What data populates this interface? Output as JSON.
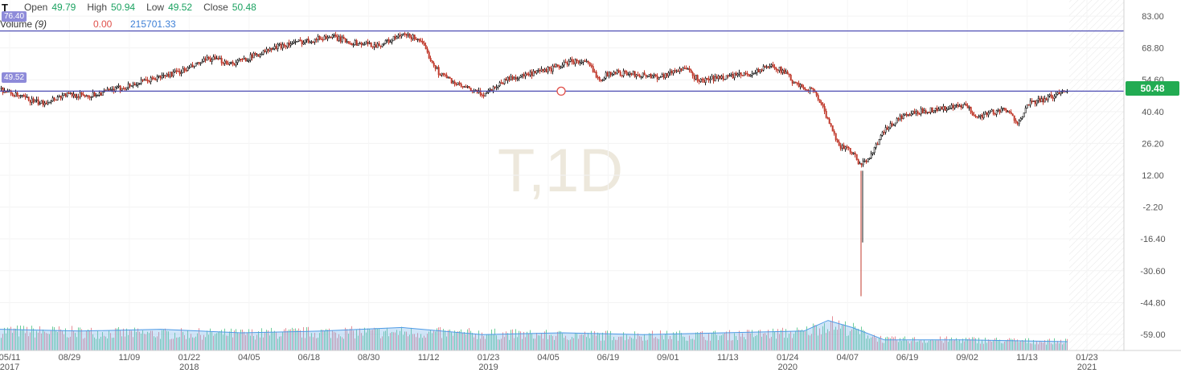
{
  "header": {
    "symbol": "T",
    "open_label": "Open",
    "open_value": "49.79",
    "high_label": "High",
    "high_value": "50.94",
    "low_label": "Low",
    "low_value": "49.52",
    "close_label": "Close",
    "close_value": "50.48"
  },
  "volume": {
    "label": "Volume",
    "period": "(9)",
    "value_a": "0.00",
    "value_b": "215701.33"
  },
  "horizontal_lines": {
    "upper": "76.40",
    "lower": "49.52"
  },
  "last_price": "50.48",
  "watermark": "T,1D",
  "colors": {
    "up": "#1aa260",
    "down": "#e0504a",
    "line": "#4d4db3",
    "tag": "#8e8bd9",
    "last_price": "#22ab52",
    "volume_ma": "#78b4ea"
  },
  "chart_data": {
    "type": "candlestick",
    "title": "",
    "ylim": [
      -66.2,
      90.2
    ],
    "y_ticks": [
      "83.00",
      "68.80",
      "54.60",
      "40.40",
      "26.20",
      "12.00",
      "-2.20",
      "-16.40",
      "-30.60",
      "-44.80",
      "-59.00"
    ],
    "x_ticks": [
      {
        "label": "05/11",
        "sub": "2017"
      },
      {
        "label": "08/29",
        "sub": ""
      },
      {
        "label": "11/09",
        "sub": ""
      },
      {
        "label": "01/22",
        "sub": "2018"
      },
      {
        "label": "04/05",
        "sub": ""
      },
      {
        "label": "06/18",
        "sub": ""
      },
      {
        "label": "08/30",
        "sub": ""
      },
      {
        "label": "11/12",
        "sub": ""
      },
      {
        "label": "01/23",
        "sub": "2019"
      },
      {
        "label": "04/05",
        "sub": ""
      },
      {
        "label": "06/19",
        "sub": ""
      },
      {
        "label": "09/01",
        "sub": ""
      },
      {
        "label": "11/13",
        "sub": ""
      },
      {
        "label": "01/24",
        "sub": "2020"
      },
      {
        "label": "04/07",
        "sub": ""
      },
      {
        "label": "06/19",
        "sub": ""
      },
      {
        "label": "09/02",
        "sub": ""
      },
      {
        "label": "11/13",
        "sub": ""
      },
      {
        "label": "01/23",
        "sub": "2021"
      }
    ],
    "close_path": [
      [
        0,
        50.5
      ],
      [
        20,
        47.5
      ],
      [
        50,
        44
      ],
      [
        80,
        48
      ],
      [
        110,
        47.5
      ],
      [
        140,
        50
      ],
      [
        170,
        53
      ],
      [
        200,
        56
      ],
      [
        230,
        59
      ],
      [
        260,
        64
      ],
      [
        290,
        62
      ],
      [
        320,
        66
      ],
      [
        350,
        70
      ],
      [
        380,
        72
      ],
      [
        410,
        74
      ],
      [
        440,
        71
      ],
      [
        470,
        70
      ],
      [
        500,
        74.5
      ],
      [
        520,
        73
      ],
      [
        545,
        58
      ],
      [
        570,
        52
      ],
      [
        600,
        48
      ],
      [
        630,
        55
      ],
      [
        660,
        57
      ],
      [
        690,
        60
      ],
      [
        710,
        63
      ],
      [
        730,
        62
      ],
      [
        745,
        55
      ],
      [
        760,
        58
      ],
      [
        790,
        57
      ],
      [
        820,
        56
      ],
      [
        850,
        60
      ],
      [
        870,
        54
      ],
      [
        900,
        56
      ],
      [
        930,
        57
      ],
      [
        960,
        61
      ],
      [
        975,
        58
      ],
      [
        990,
        52
      ],
      [
        1010,
        50
      ],
      [
        1020,
        45
      ],
      [
        1030,
        35
      ],
      [
        1045,
        25
      ],
      [
        1060,
        22
      ],
      [
        1070,
        16
      ],
      [
        1080,
        20
      ],
      [
        1100,
        32
      ],
      [
        1120,
        38
      ],
      [
        1150,
        41
      ],
      [
        1180,
        42
      ],
      [
        1200,
        43
      ],
      [
        1215,
        38
      ],
      [
        1230,
        40
      ],
      [
        1250,
        41
      ],
      [
        1265,
        36
      ],
      [
        1280,
        44
      ],
      [
        1300,
        46
      ],
      [
        1328,
        50.48
      ]
    ],
    "crash_low": -42,
    "crash_high": 14,
    "volume_level": [
      [
        0,
        0.65
      ],
      [
        100,
        0.6
      ],
      [
        200,
        0.55
      ],
      [
        300,
        0.55
      ],
      [
        400,
        0.6
      ],
      [
        500,
        0.6
      ],
      [
        600,
        0.55
      ],
      [
        700,
        0.5
      ],
      [
        800,
        0.5
      ],
      [
        900,
        0.5
      ],
      [
        1000,
        0.6
      ],
      [
        1030,
        0.9
      ],
      [
        1060,
        0.7
      ],
      [
        1100,
        0.35
      ],
      [
        1200,
        0.35
      ],
      [
        1300,
        0.3
      ],
      [
        1328,
        0.3
      ]
    ],
    "volume_ma_path": [
      [
        0,
        0.6
      ],
      [
        100,
        0.55
      ],
      [
        200,
        0.6
      ],
      [
        300,
        0.5
      ],
      [
        400,
        0.55
      ],
      [
        500,
        0.65
      ],
      [
        600,
        0.45
      ],
      [
        700,
        0.5
      ],
      [
        800,
        0.45
      ],
      [
        900,
        0.5
      ],
      [
        1000,
        0.55
      ],
      [
        1030,
        0.85
      ],
      [
        1060,
        0.65
      ],
      [
        1100,
        0.3
      ],
      [
        1200,
        0.3
      ],
      [
        1328,
        0.25
      ]
    ],
    "marker_circle": {
      "x": 698,
      "y": 49.52
    }
  }
}
